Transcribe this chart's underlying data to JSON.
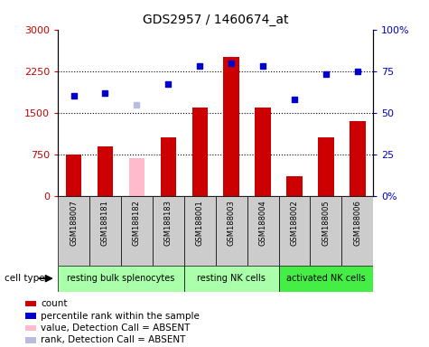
{
  "title": "GDS2957 / 1460674_at",
  "samples": [
    "GSM188007",
    "GSM188181",
    "GSM188182",
    "GSM188183",
    "GSM188001",
    "GSM188003",
    "GSM188004",
    "GSM188002",
    "GSM188005",
    "GSM188006"
  ],
  "counts": [
    750,
    900,
    null,
    1050,
    1600,
    2500,
    1600,
    350,
    1050,
    1350
  ],
  "absent_counts": [
    null,
    null,
    680,
    null,
    null,
    null,
    null,
    null,
    null,
    null
  ],
  "percentile_ranks": [
    60,
    62,
    null,
    67,
    78,
    80,
    78,
    58,
    73,
    75
  ],
  "absent_ranks": [
    null,
    null,
    55,
    null,
    null,
    null,
    null,
    null,
    null,
    null
  ],
  "cell_groups": [
    {
      "label": "resting bulk splenocytes",
      "start": 0,
      "end": 4,
      "color": "#aaffaa"
    },
    {
      "label": "resting NK cells",
      "start": 4,
      "end": 7,
      "color": "#aaffaa"
    },
    {
      "label": "activated NK cells",
      "start": 7,
      "end": 10,
      "color": "#44ee44"
    }
  ],
  "ylim_left": [
    0,
    3000
  ],
  "ylim_right": [
    0,
    100
  ],
  "yticks_left": [
    0,
    750,
    1500,
    2250,
    3000
  ],
  "yticks_right": [
    0,
    25,
    50,
    75,
    100
  ],
  "ytick_labels_left": [
    "0",
    "750",
    "1500",
    "2250",
    "3000"
  ],
  "ytick_labels_right": [
    "0%",
    "25",
    "50",
    "75",
    "100%"
  ],
  "bar_color_present": "#cc0000",
  "bar_color_absent": "#ffbbcc",
  "dot_color_present": "#0000cc",
  "dot_color_absent": "#bbbbdd",
  "bg_color_samples": "#cccccc",
  "cell_type_label": "cell type",
  "legend_items": [
    {
      "color": "#cc0000",
      "label": "count",
      "marker": "s"
    },
    {
      "color": "#0000cc",
      "label": "percentile rank within the sample",
      "marker": "s"
    },
    {
      "color": "#ffbbcc",
      "label": "value, Detection Call = ABSENT",
      "marker": "s"
    },
    {
      "color": "#bbbbdd",
      "label": "rank, Detection Call = ABSENT",
      "marker": "s"
    }
  ]
}
